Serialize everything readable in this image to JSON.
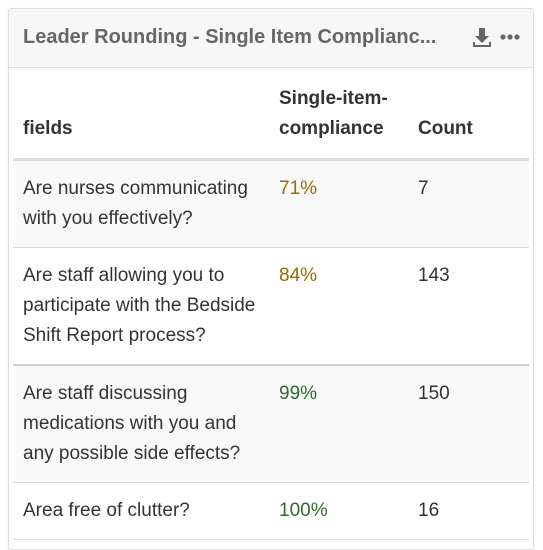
{
  "card": {
    "title": "Leader Rounding - Single Item Complianc...",
    "download_icon": "download-icon",
    "more_icon": "more-horizontal-icon",
    "colors": {
      "amber": "#9a6a00",
      "green": "#2f6b2a"
    }
  },
  "table": {
    "headers": [
      "fields",
      "Single-item-compliance",
      "Count"
    ],
    "rows": [
      {
        "field": "Are nurses communicating with you effectively?",
        "compliance": "71%",
        "count": "7"
      },
      {
        "field": "Are staff allowing you to participate with the Bedside Shift Report process?",
        "compliance": "84%",
        "count": "143"
      },
      {
        "field": "Are staff discussing medications with you and any possible side effects?",
        "compliance": "99%",
        "count": "150"
      },
      {
        "field": "Area free of clutter?",
        "compliance": "100%",
        "count": "16"
      }
    ]
  }
}
